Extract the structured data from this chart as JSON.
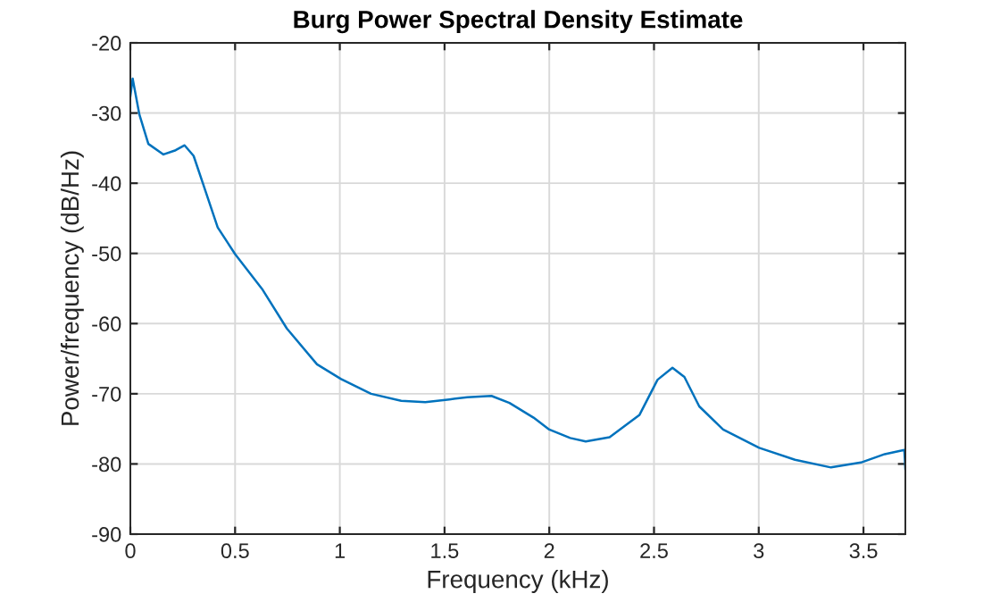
{
  "chart_data": {
    "type": "line",
    "title": "Burg Power Spectral Density Estimate",
    "xlabel": "Frequency (kHz)",
    "ylabel": "Power/frequency (dB/Hz)",
    "xlim": [
      0,
      3.7
    ],
    "ylim": [
      -90,
      -20
    ],
    "xticks": [
      0,
      0.5,
      1,
      1.5,
      2,
      2.5,
      3,
      3.5
    ],
    "yticks": [
      -90,
      -80,
      -70,
      -60,
      -50,
      -40,
      -30,
      -20
    ],
    "grid": true,
    "series": [
      {
        "color": "#0072bd",
        "x": [
          0,
          0.011,
          0.043,
          0.086,
          0.158,
          0.216,
          0.259,
          0.302,
          0.345,
          0.417,
          0.5,
          0.632,
          0.747,
          0.891,
          1.006,
          1.149,
          1.293,
          1.408,
          1.523,
          1.609,
          1.724,
          1.81,
          1.925,
          2.0,
          2.1,
          2.174,
          2.288,
          2.431,
          2.517,
          2.588,
          2.645,
          2.716,
          2.83,
          3.002,
          3.173,
          3.345,
          3.488,
          3.602,
          3.695,
          3.7
        ],
        "values": [
          -27.6,
          -25.1,
          -30.2,
          -34.4,
          -35.9,
          -35.3,
          -34.6,
          -36.1,
          -39.9,
          -46.3,
          -50.1,
          -55.2,
          -60.7,
          -65.8,
          -67.9,
          -70.0,
          -71.0,
          -71.2,
          -70.8,
          -70.5,
          -70.3,
          -71.3,
          -73.4,
          -75.1,
          -76.3,
          -76.8,
          -76.2,
          -73.0,
          -68.0,
          -66.3,
          -67.6,
          -71.8,
          -75.1,
          -77.7,
          -79.4,
          -80.5,
          -79.8,
          -78.6,
          -78.0,
          -80.7
        ]
      }
    ]
  }
}
